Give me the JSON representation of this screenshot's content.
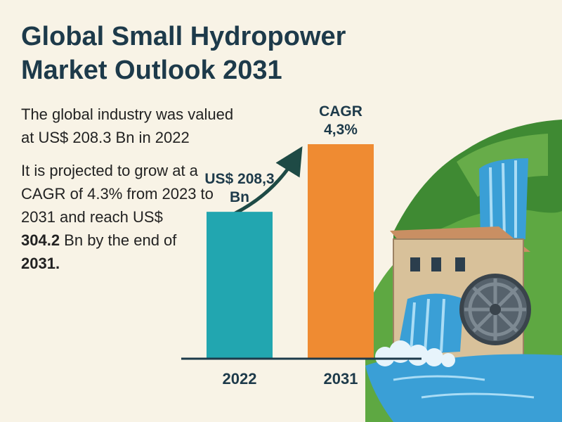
{
  "header": {
    "title_line1": "Global Small Hydropower",
    "title_line2": "Market Outlook 2031"
  },
  "text": {
    "para1_line1": "The global industry was valued",
    "para1_line2": "at US$ 208.3 Bn in 2022",
    "para2_line1": "It is projected to grow at a",
    "para2_line2": "CAGR of 4.3% from 2023 to",
    "para2_line3": "2031 and reach US$",
    "para2_line4_bold": "304.2",
    "para2_line4_rest": " Bn by the end of",
    "para2_line5": "2031."
  },
  "chart_data": {
    "type": "bar",
    "categories": [
      "2022",
      "2031"
    ],
    "values": [
      208.3,
      304.2
    ],
    "bar_labels": [
      [
        "US$ 208,3",
        "Bn"
      ],
      [
        "CAGR",
        "4,3%"
      ]
    ],
    "colors": [
      "#22a6b0",
      "#ef8b32"
    ],
    "ylim": [
      0,
      304.2
    ],
    "grid": false,
    "trend_arrow": true
  },
  "colors": {
    "background": "#f8f3e6",
    "title": "#1d3a4a",
    "water": "#3a9fd6",
    "hill": "#4f9a3c"
  },
  "icons": [
    "growth-arrow-icon",
    "waterfall-illustration",
    "hydropower-plant-icon",
    "water-wheel-icon"
  ]
}
